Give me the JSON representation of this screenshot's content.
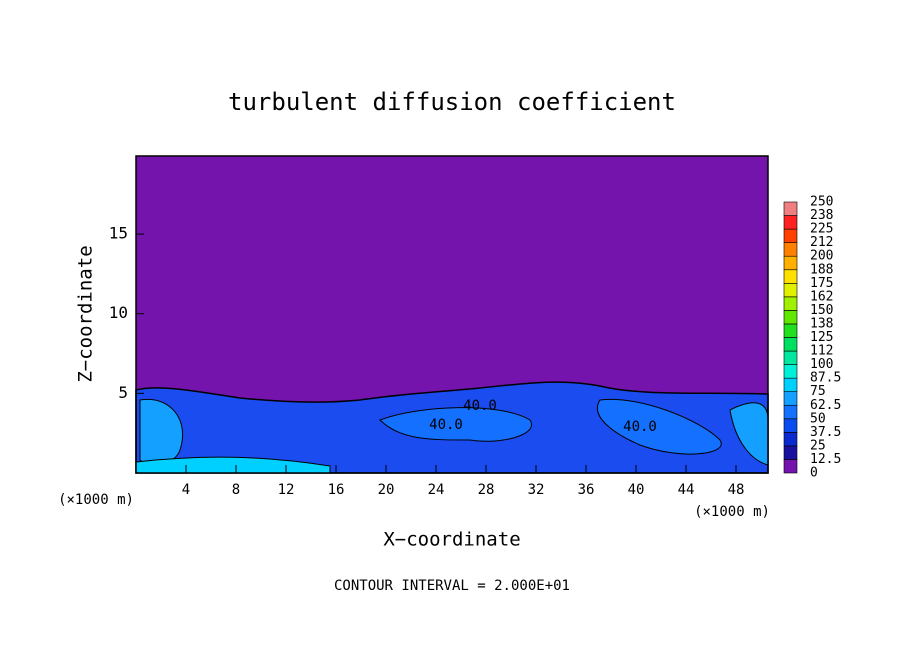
{
  "chart_data": {
    "type": "contour",
    "title": "turbulent diffusion coefficient",
    "x_label": "X−coordinate",
    "y_label": "Z−coordinate",
    "y_unit": "(×1000 m)",
    "x_unit": "(×1000 m)",
    "footer": "CONTOUR INTERVAL = 2.000E+01",
    "contour_labels": [
      "40.0",
      "40.0",
      "40.0"
    ],
    "background_color": "#7414ac",
    "xlim": [
      0,
      50.56
    ],
    "xticks": [
      4,
      8,
      12,
      16,
      20,
      24,
      28,
      32,
      36,
      40,
      44,
      48
    ],
    "ylim": [
      0,
      19.9
    ],
    "yticks": [
      5,
      10,
      15
    ],
    "colorbar": {
      "levels": [
        0,
        12.5,
        25,
        37.5,
        50,
        62.5,
        75,
        87.5,
        100,
        {
          "value": 112.5,
          "label": "112"
        },
        125,
        {
          "value": 137.5,
          "label": "138"
        },
        150,
        {
          "value": 162.5,
          "label": "162"
        },
        175,
        {
          "value": 187.5,
          "label": "188"
        },
        200,
        {
          "value": 212.5,
          "label": "212"
        },
        225,
        {
          "value": 237.5,
          "label": "238"
        },
        250
      ],
      "colors": [
        "#7414ac",
        "#1a10a0",
        "#0a2ad0",
        "#0a4cf0",
        "#1470ff",
        "#14a0ff",
        "#00d0ff",
        "#00f0d8",
        "#00e8a0",
        "#00e060",
        "#20e020",
        "#60e800",
        "#a0f000",
        "#e0f000",
        "#ffe000",
        "#ffb000",
        "#ff8000",
        "#ff4000",
        "#ff2020",
        "#f08080"
      ]
    }
  }
}
